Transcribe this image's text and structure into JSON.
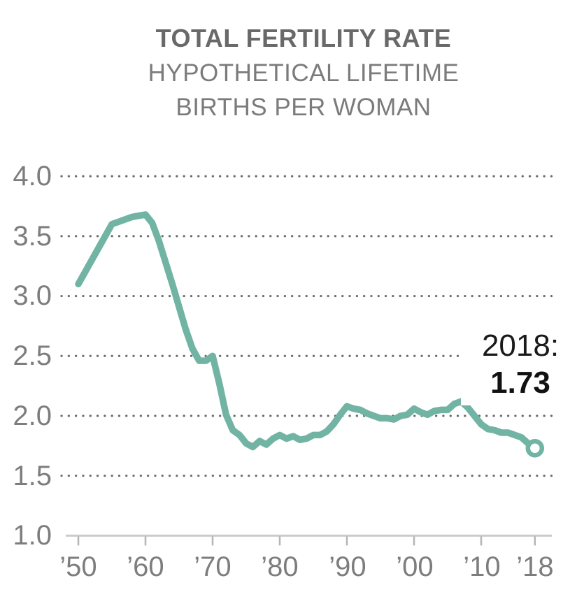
{
  "header": {
    "title": "TOTAL FERTILITY RATE",
    "subtitle_line1": "HYPOTHETICAL LIFETIME",
    "subtitle_line2": "BIRTHS PER WOMAN"
  },
  "chart_data": {
    "type": "line",
    "title": "TOTAL FERTILITY RATE",
    "subtitle": "HYPOTHETICAL LIFETIME BIRTHS PER WOMAN",
    "series_name": "Total fertility rate (births per woman)",
    "x": [
      1950,
      1951,
      1952,
      1953,
      1954,
      1955,
      1956,
      1957,
      1958,
      1959,
      1960,
      1961,
      1962,
      1963,
      1964,
      1965,
      1966,
      1967,
      1968,
      1969,
      1970,
      1971,
      1972,
      1973,
      1974,
      1975,
      1976,
      1977,
      1978,
      1979,
      1980,
      1981,
      1982,
      1983,
      1984,
      1985,
      1986,
      1987,
      1988,
      1989,
      1990,
      1991,
      1992,
      1993,
      1994,
      1995,
      1996,
      1997,
      1998,
      1999,
      2000,
      2001,
      2002,
      2003,
      2004,
      2005,
      2006,
      2007,
      2008,
      2009,
      2010,
      2011,
      2012,
      2013,
      2014,
      2015,
      2016,
      2017,
      2018
    ],
    "values": [
      3.1,
      3.2,
      3.3,
      3.4,
      3.5,
      3.6,
      3.62,
      3.64,
      3.66,
      3.67,
      3.68,
      3.61,
      3.46,
      3.28,
      3.1,
      2.91,
      2.72,
      2.56,
      2.46,
      2.46,
      2.5,
      2.27,
      2.01,
      1.88,
      1.84,
      1.77,
      1.74,
      1.79,
      1.76,
      1.81,
      1.84,
      1.81,
      1.83,
      1.8,
      1.81,
      1.84,
      1.84,
      1.87,
      1.93,
      2.01,
      2.08,
      2.06,
      2.05,
      2.02,
      2.0,
      1.98,
      1.98,
      1.97,
      2.0,
      2.01,
      2.06,
      2.03,
      2.01,
      2.04,
      2.05,
      2.05,
      2.1,
      2.12,
      2.07,
      2.0,
      1.93,
      1.89,
      1.88,
      1.86,
      1.86,
      1.84,
      1.82,
      1.77,
      1.73
    ],
    "ylim": [
      1.0,
      4.25
    ],
    "xlim": [
      1950,
      2018
    ],
    "yticks": [
      4.0,
      3.5,
      3.0,
      2.5,
      2.0,
      1.5,
      1.0
    ],
    "ytick_labels": [
      "4.0",
      "3.5",
      "3.0",
      "2.5",
      "2.0",
      "1.5",
      "1.0"
    ],
    "xticks": [
      1950,
      1960,
      1970,
      1980,
      1990,
      2000,
      2010,
      2018
    ],
    "xtick_labels": [
      "’50",
      "’60",
      "’70",
      "’80",
      "’90",
      "’00",
      "’10",
      "’18"
    ],
    "grid": "dotted horizontal gridlines, solid baseline at 1.0",
    "legend": "none",
    "annotation": {
      "line1": "2018:",
      "line2": "1.73",
      "year": 2018,
      "value": 1.73
    },
    "marker": "open circle on last point",
    "colors": {
      "line": "#71b4a4",
      "marker_fill": "#ffffff",
      "grid_dots": "#6b6b6b",
      "axis_line": "#cbcbcb",
      "tick_mark": "#b5b5b5",
      "axis_labels": "#7d7d7d",
      "title": "#696969",
      "subtitle": "#7b7b7b",
      "annotation_text": "#1a1a1a",
      "background": "#ffffff"
    }
  }
}
